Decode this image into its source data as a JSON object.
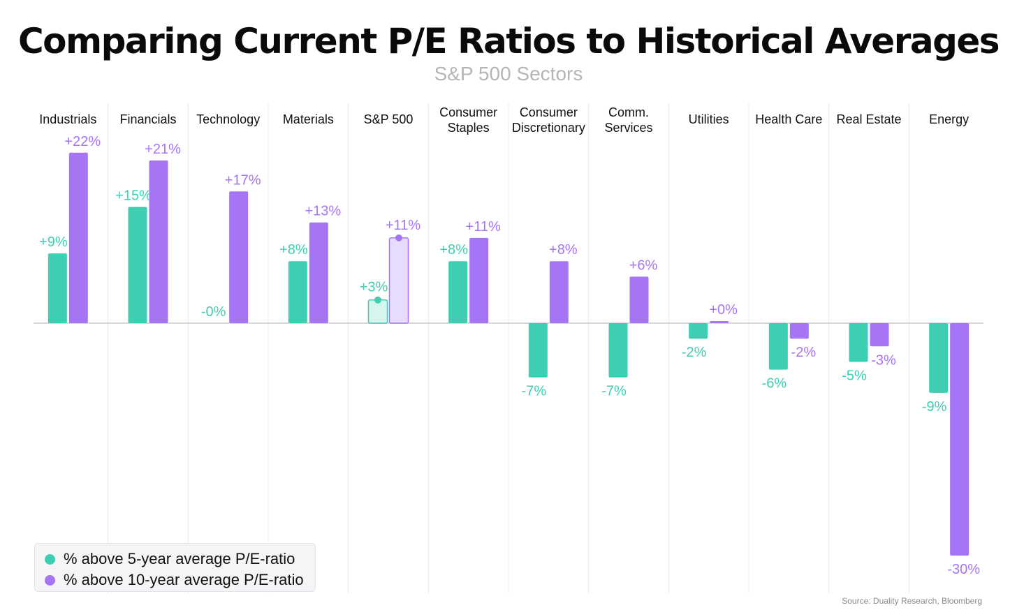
{
  "title": "Comparing Current P/E Ratios to Historical Averages",
  "subtitle": "S&P 500 Sectors",
  "source": "Source: Duality Research, Bloomberg",
  "colors": {
    "five_year": "#3ecfb2",
    "ten_year": "#a675f5",
    "five_year_light": "#d6f5ee",
    "ten_year_light": "#e7dcfd",
    "grid": "#e8e8ec",
    "zero_line": "#c9c9cf"
  },
  "legend": [
    {
      "label": "% above 5-year average P/E-ratio",
      "color": "#3ecfb2"
    },
    {
      "label": "% above 10-year average P/E-ratio",
      "color": "#a675f5"
    }
  ],
  "chart_data": {
    "type": "bar",
    "title": "Comparing Current P/E Ratios to Historical Averages",
    "subtitle": "S&P 500 Sectors",
    "categories": [
      [
        "Industrials"
      ],
      [
        "Financials"
      ],
      [
        "Technology"
      ],
      [
        "Materials"
      ],
      [
        "S&P 500"
      ],
      [
        "Consumer",
        "Staples"
      ],
      [
        "Consumer",
        "Discretionary"
      ],
      [
        "Comm.",
        "Services"
      ],
      [
        "Utilities"
      ],
      [
        "Health Care"
      ],
      [
        "Real Estate"
      ],
      [
        "Energy"
      ]
    ],
    "highlight_category": "S&P 500",
    "series": [
      {
        "name": "% above 5-year average P/E-ratio",
        "color": "#3ecfb2",
        "values": [
          9,
          15,
          0,
          8,
          3,
          8,
          -7,
          -7,
          -2,
          -6,
          -5,
          -9
        ],
        "labels": [
          "+9%",
          "+15%",
          "-0%",
          "+8%",
          "+3%",
          "+8%",
          "-7%",
          "-7%",
          "-2%",
          "-6%",
          "-5%",
          "-9%"
        ]
      },
      {
        "name": "% above 10-year average P/E-ratio",
        "color": "#a675f5",
        "values": [
          22,
          21,
          17,
          13,
          11,
          11,
          8,
          6,
          0,
          -2,
          -3,
          -30
        ],
        "labels": [
          "+22%",
          "+21%",
          "+17%",
          "+13%",
          "+11%",
          "+11%",
          "+8%",
          "+6%",
          "+0%",
          "-2%",
          "-3%",
          "-30%"
        ]
      }
    ],
    "ylim": [
      -32,
      25
    ],
    "grid": "vertical separators",
    "legend_position": "bottom-left"
  }
}
